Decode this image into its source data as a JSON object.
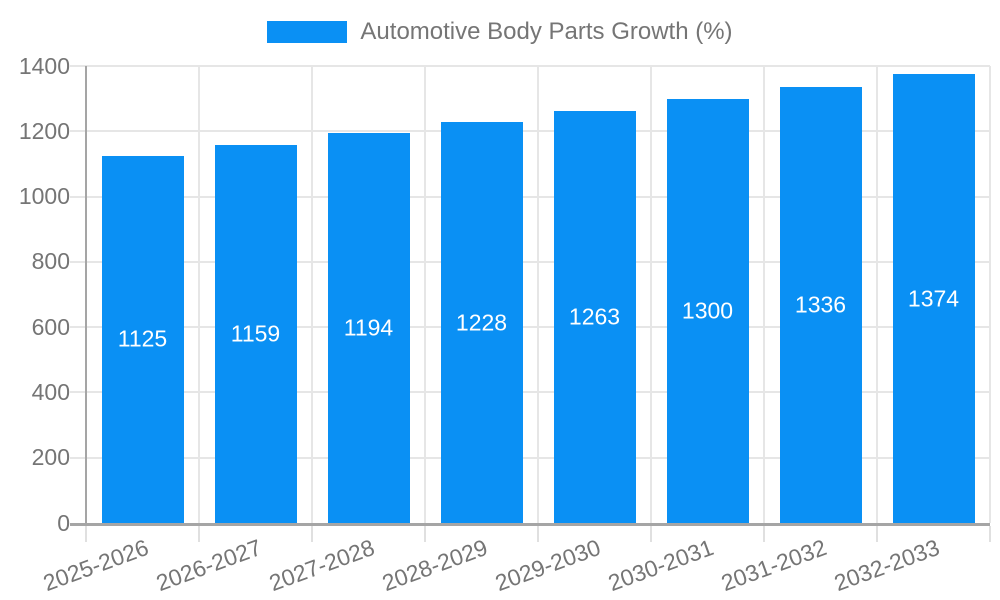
{
  "chart_data": {
    "type": "bar",
    "title": "Automotive Body Parts Growth (%)",
    "categories": [
      "2025-2026",
      "2026-2027",
      "2027-2028",
      "2028-2029",
      "2029-2030",
      "2030-2031",
      "2031-2032",
      "2032-2033"
    ],
    "values": [
      1125,
      1159,
      1194,
      1228,
      1263,
      1300,
      1336,
      1374
    ],
    "xlabel": "",
    "ylabel": "",
    "ylim": [
      0,
      1400
    ],
    "yticks": [
      0,
      200,
      400,
      600,
      800,
      1000,
      1200,
      1400
    ],
    "grid": true,
    "legend_position": "top",
    "bar_color": "#0a90f4",
    "value_label_color": "#ffffff",
    "axis_text_color": "#757575",
    "grid_color": "#e6e6e6",
    "axis_line_color": "#a5a5a5",
    "background_color": "#ffffff"
  }
}
